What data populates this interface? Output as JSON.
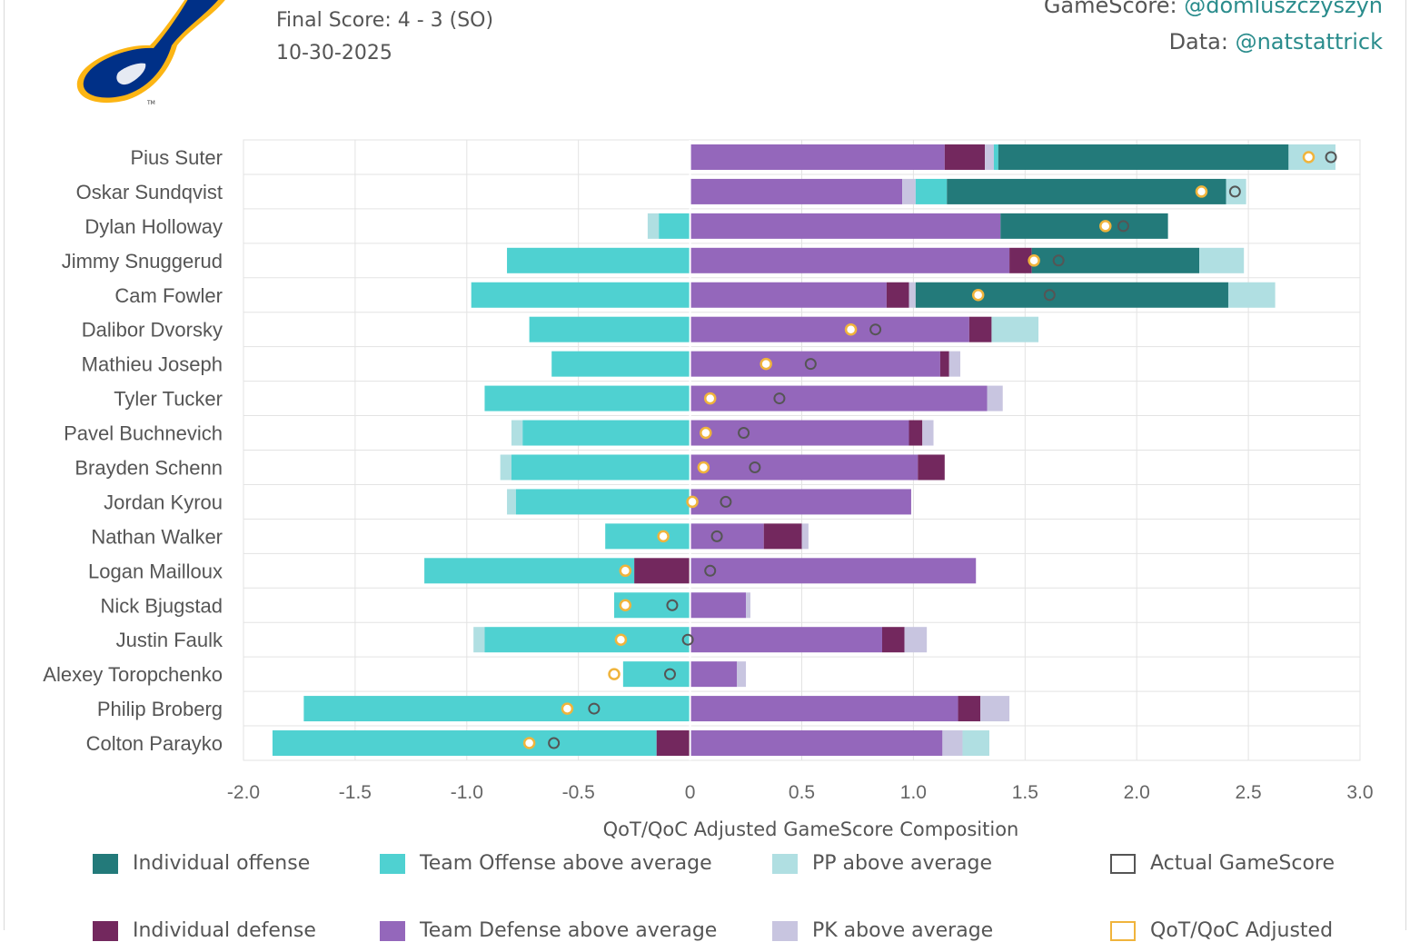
{
  "header": {
    "final_score": "Final Score: 4 - 3 (SO)",
    "date": "10-30-2025",
    "gamescore_label": "GameScore: ",
    "gamescore_handle": "@domluszczyszyn",
    "data_label": "Data: ",
    "data_handle": "@natstattrick"
  },
  "logo": {
    "name": "blues-note-logo",
    "colors": {
      "blue": "#003087",
      "gold": "#FCB514"
    }
  },
  "colors": {
    "individual_offense": "#237a7a",
    "team_offense": "#4fd1d1",
    "pp": "#b0dfe2",
    "individual_defense": "#73285e",
    "team_defense": "#9467bb",
    "pk": "#c8c5e0",
    "actual_marker": "#555555",
    "qot_marker": "#f0b43c"
  },
  "legend": [
    {
      "label": "Individual offense",
      "color": "#237a7a",
      "style": "fill"
    },
    {
      "label": "Team Offense above average",
      "color": "#4fd1d1",
      "style": "fill"
    },
    {
      "label": "PP above average",
      "color": "#b0dfe2",
      "style": "fill"
    },
    {
      "label": "Actual GameScore",
      "color": "#555555",
      "style": "outline"
    },
    {
      "label": "Individual defense",
      "color": "#73285e",
      "style": "fill"
    },
    {
      "label": "Team Defense above average",
      "color": "#9467bb",
      "style": "fill"
    },
    {
      "label": "PK above average",
      "color": "#c8c5e0",
      "style": "fill"
    },
    {
      "label": "QoT/QoC Adjusted",
      "color": "#f0b43c",
      "style": "outline"
    }
  ],
  "chart_data": {
    "type": "bar",
    "orientation": "horizontal-stacked",
    "xlabel": "QoT/QoC Adjusted GameScore Composition",
    "xlim": [
      -2.0,
      3.0
    ],
    "x_ticks": [
      "-2.0",
      "-1.5",
      "-1.0",
      "-0.5",
      "0",
      "0.5",
      "1.0",
      "1.5",
      "2.0",
      "2.5",
      "3.0"
    ],
    "x_tick_values": [
      -2.0,
      -1.5,
      -1.0,
      -0.5,
      0,
      0.5,
      1.0,
      1.5,
      2.0,
      2.5,
      3.0
    ],
    "grid": true,
    "players": [
      {
        "name": "Pius Suter",
        "segments": [
          [
            "team_defense",
            0,
            1.14
          ],
          [
            "individual_defense",
            1.14,
            1.32
          ],
          [
            "pk",
            1.32,
            1.36
          ],
          [
            "team_offense",
            1.36,
            1.38
          ],
          [
            "individual_offense",
            1.38,
            2.68
          ],
          [
            "pp",
            2.68,
            2.89
          ]
        ],
        "actual": 2.87,
        "adjusted": 2.77
      },
      {
        "name": "Oskar Sundqvist",
        "segments": [
          [
            "team_defense",
            0,
            0.95
          ],
          [
            "pk",
            0.95,
            1.01
          ],
          [
            "team_offense",
            1.01,
            1.15
          ],
          [
            "individual_offense",
            1.15,
            2.4
          ],
          [
            "pp",
            2.4,
            2.49
          ]
        ],
        "actual": 2.44,
        "adjusted": 2.29
      },
      {
        "name": "Dylan Holloway",
        "segments": [
          [
            "pp",
            -0.19,
            -0.14
          ],
          [
            "team_offense",
            -0.14,
            0
          ],
          [
            "team_defense",
            0,
            1.39
          ],
          [
            "individual_offense",
            1.39,
            2.14
          ]
        ],
        "actual": 1.94,
        "adjusted": 1.86
      },
      {
        "name": "Jimmy Snuggerud",
        "segments": [
          [
            "team_offense",
            -0.82,
            0
          ],
          [
            "team_defense",
            0,
            1.43
          ],
          [
            "individual_defense",
            1.43,
            1.53
          ],
          [
            "individual_offense",
            1.53,
            2.28
          ],
          [
            "pp",
            2.28,
            2.48
          ]
        ],
        "actual": 1.65,
        "adjusted": 1.54
      },
      {
        "name": "Cam Fowler",
        "segments": [
          [
            "team_offense",
            -0.98,
            0
          ],
          [
            "team_defense",
            0,
            0.88
          ],
          [
            "individual_defense",
            0.88,
            0.98
          ],
          [
            "pk",
            0.98,
            1.01
          ],
          [
            "individual_offense",
            1.01,
            2.41
          ],
          [
            "pp",
            2.41,
            2.62
          ]
        ],
        "actual": 1.61,
        "adjusted": 1.29
      },
      {
        "name": "Dalibor Dvorsky",
        "segments": [
          [
            "team_offense",
            -0.72,
            0
          ],
          [
            "team_defense",
            0,
            1.25
          ],
          [
            "individual_defense",
            1.25,
            1.35
          ],
          [
            "pp",
            1.35,
            1.56
          ]
        ],
        "actual": 0.83,
        "adjusted": 0.72
      },
      {
        "name": "Mathieu Joseph",
        "segments": [
          [
            "team_offense",
            -0.62,
            0
          ],
          [
            "team_defense",
            0,
            1.12
          ],
          [
            "individual_defense",
            1.12,
            1.16
          ],
          [
            "pk",
            1.16,
            1.21
          ]
        ],
        "actual": 0.54,
        "adjusted": 0.34
      },
      {
        "name": "Tyler Tucker",
        "segments": [
          [
            "team_offense",
            -0.92,
            0
          ],
          [
            "team_defense",
            0,
            1.33
          ],
          [
            "pk",
            1.33,
            1.4
          ]
        ],
        "actual": 0.4,
        "adjusted": 0.09
      },
      {
        "name": "Pavel Buchnevich",
        "segments": [
          [
            "pp",
            -0.8,
            -0.75
          ],
          [
            "team_offense",
            -0.75,
            0
          ],
          [
            "team_defense",
            0,
            0.98
          ],
          [
            "individual_defense",
            0.98,
            1.04
          ],
          [
            "pk",
            1.04,
            1.09
          ]
        ],
        "actual": 0.24,
        "adjusted": 0.07
      },
      {
        "name": "Brayden Schenn",
        "segments": [
          [
            "pp",
            -0.85,
            -0.8
          ],
          [
            "team_offense",
            -0.8,
            0
          ],
          [
            "team_defense",
            0,
            1.02
          ],
          [
            "individual_defense",
            1.02,
            1.14
          ]
        ],
        "actual": 0.29,
        "adjusted": 0.06
      },
      {
        "name": "Jordan Kyrou",
        "segments": [
          [
            "pp",
            -0.82,
            -0.78
          ],
          [
            "team_offense",
            -0.78,
            0
          ],
          [
            "team_defense",
            0,
            0.99
          ]
        ],
        "actual": 0.16,
        "adjusted": 0.01
      },
      {
        "name": "Nathan Walker",
        "segments": [
          [
            "team_offense",
            -0.38,
            0
          ],
          [
            "team_defense",
            0,
            0.33
          ],
          [
            "individual_defense",
            0.33,
            0.5
          ],
          [
            "pk",
            0.5,
            0.53
          ]
        ],
        "actual": 0.12,
        "adjusted": -0.12
      },
      {
        "name": "Logan Mailloux",
        "segments": [
          [
            "team_offense",
            -1.19,
            -0.25
          ],
          [
            "individual_defense",
            -0.25,
            0
          ],
          [
            "team_defense",
            0,
            1.28
          ]
        ],
        "actual": 0.09,
        "adjusted": -0.29
      },
      {
        "name": "Nick Bjugstad",
        "segments": [
          [
            "team_offense",
            -0.34,
            0
          ],
          [
            "team_defense",
            0,
            0.25
          ],
          [
            "pk",
            0.25,
            0.27
          ]
        ],
        "actual": -0.08,
        "adjusted": -0.29
      },
      {
        "name": "Justin Faulk",
        "segments": [
          [
            "pp",
            -0.97,
            -0.92
          ],
          [
            "team_offense",
            -0.92,
            0
          ],
          [
            "team_defense",
            0,
            0.86
          ],
          [
            "individual_defense",
            0.86,
            0.96
          ],
          [
            "pk",
            0.96,
            1.06
          ]
        ],
        "actual": -0.01,
        "adjusted": -0.31
      },
      {
        "name": "Alexey Toropchenko",
        "segments": [
          [
            "team_offense",
            -0.3,
            0
          ],
          [
            "team_defense",
            0,
            0.21
          ],
          [
            "pk",
            0.21,
            0.25
          ]
        ],
        "actual": -0.09,
        "adjusted": -0.34
      },
      {
        "name": "Philip Broberg",
        "segments": [
          [
            "team_offense",
            -1.73,
            0
          ],
          [
            "team_defense",
            0,
            1.2
          ],
          [
            "individual_defense",
            1.2,
            1.3
          ],
          [
            "pk",
            1.3,
            1.43
          ]
        ],
        "actual": -0.43,
        "adjusted": -0.55
      },
      {
        "name": "Colton Parayko",
        "segments": [
          [
            "team_offense",
            -1.87,
            -0.15
          ],
          [
            "individual_defense",
            -0.15,
            0
          ],
          [
            "team_defense",
            0,
            1.13
          ],
          [
            "pk",
            1.13,
            1.22
          ],
          [
            "pp",
            1.22,
            1.34
          ]
        ],
        "actual": -0.61,
        "adjusted": -0.72
      }
    ]
  }
}
